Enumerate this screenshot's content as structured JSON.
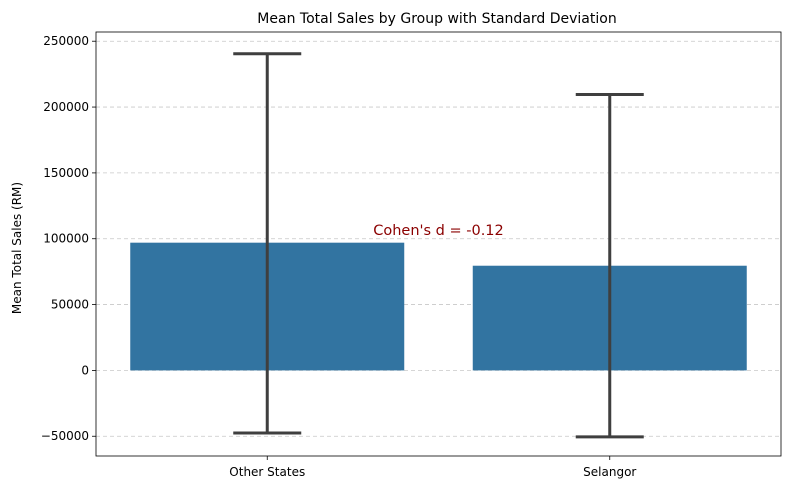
{
  "chart_data": {
    "type": "bar",
    "title": "Mean Total Sales by Group with Standard Deviation",
    "xlabel": "",
    "ylabel": "Mean Total Sales (RM)",
    "categories": [
      "Other States",
      "Selangor"
    ],
    "values": [
      97000,
      79500
    ],
    "error_low": [
      -47500,
      -50500
    ],
    "error_high": [
      240500,
      209500
    ],
    "ylim": [
      -65000,
      257000
    ],
    "yticks": [
      -50000,
      0,
      50000,
      100000,
      150000,
      200000,
      250000
    ],
    "ytick_labels": [
      "−50000",
      "0",
      "50000",
      "100000",
      "150000",
      "200000",
      "250000"
    ],
    "grid": "y-dashed",
    "bar_color": "#3274a1",
    "errorbar_color": "#3f3f3f",
    "annotation": {
      "text": "Cohen's d = -0.12",
      "x": 0.5,
      "y": 103000,
      "color": "#8b0000"
    }
  }
}
